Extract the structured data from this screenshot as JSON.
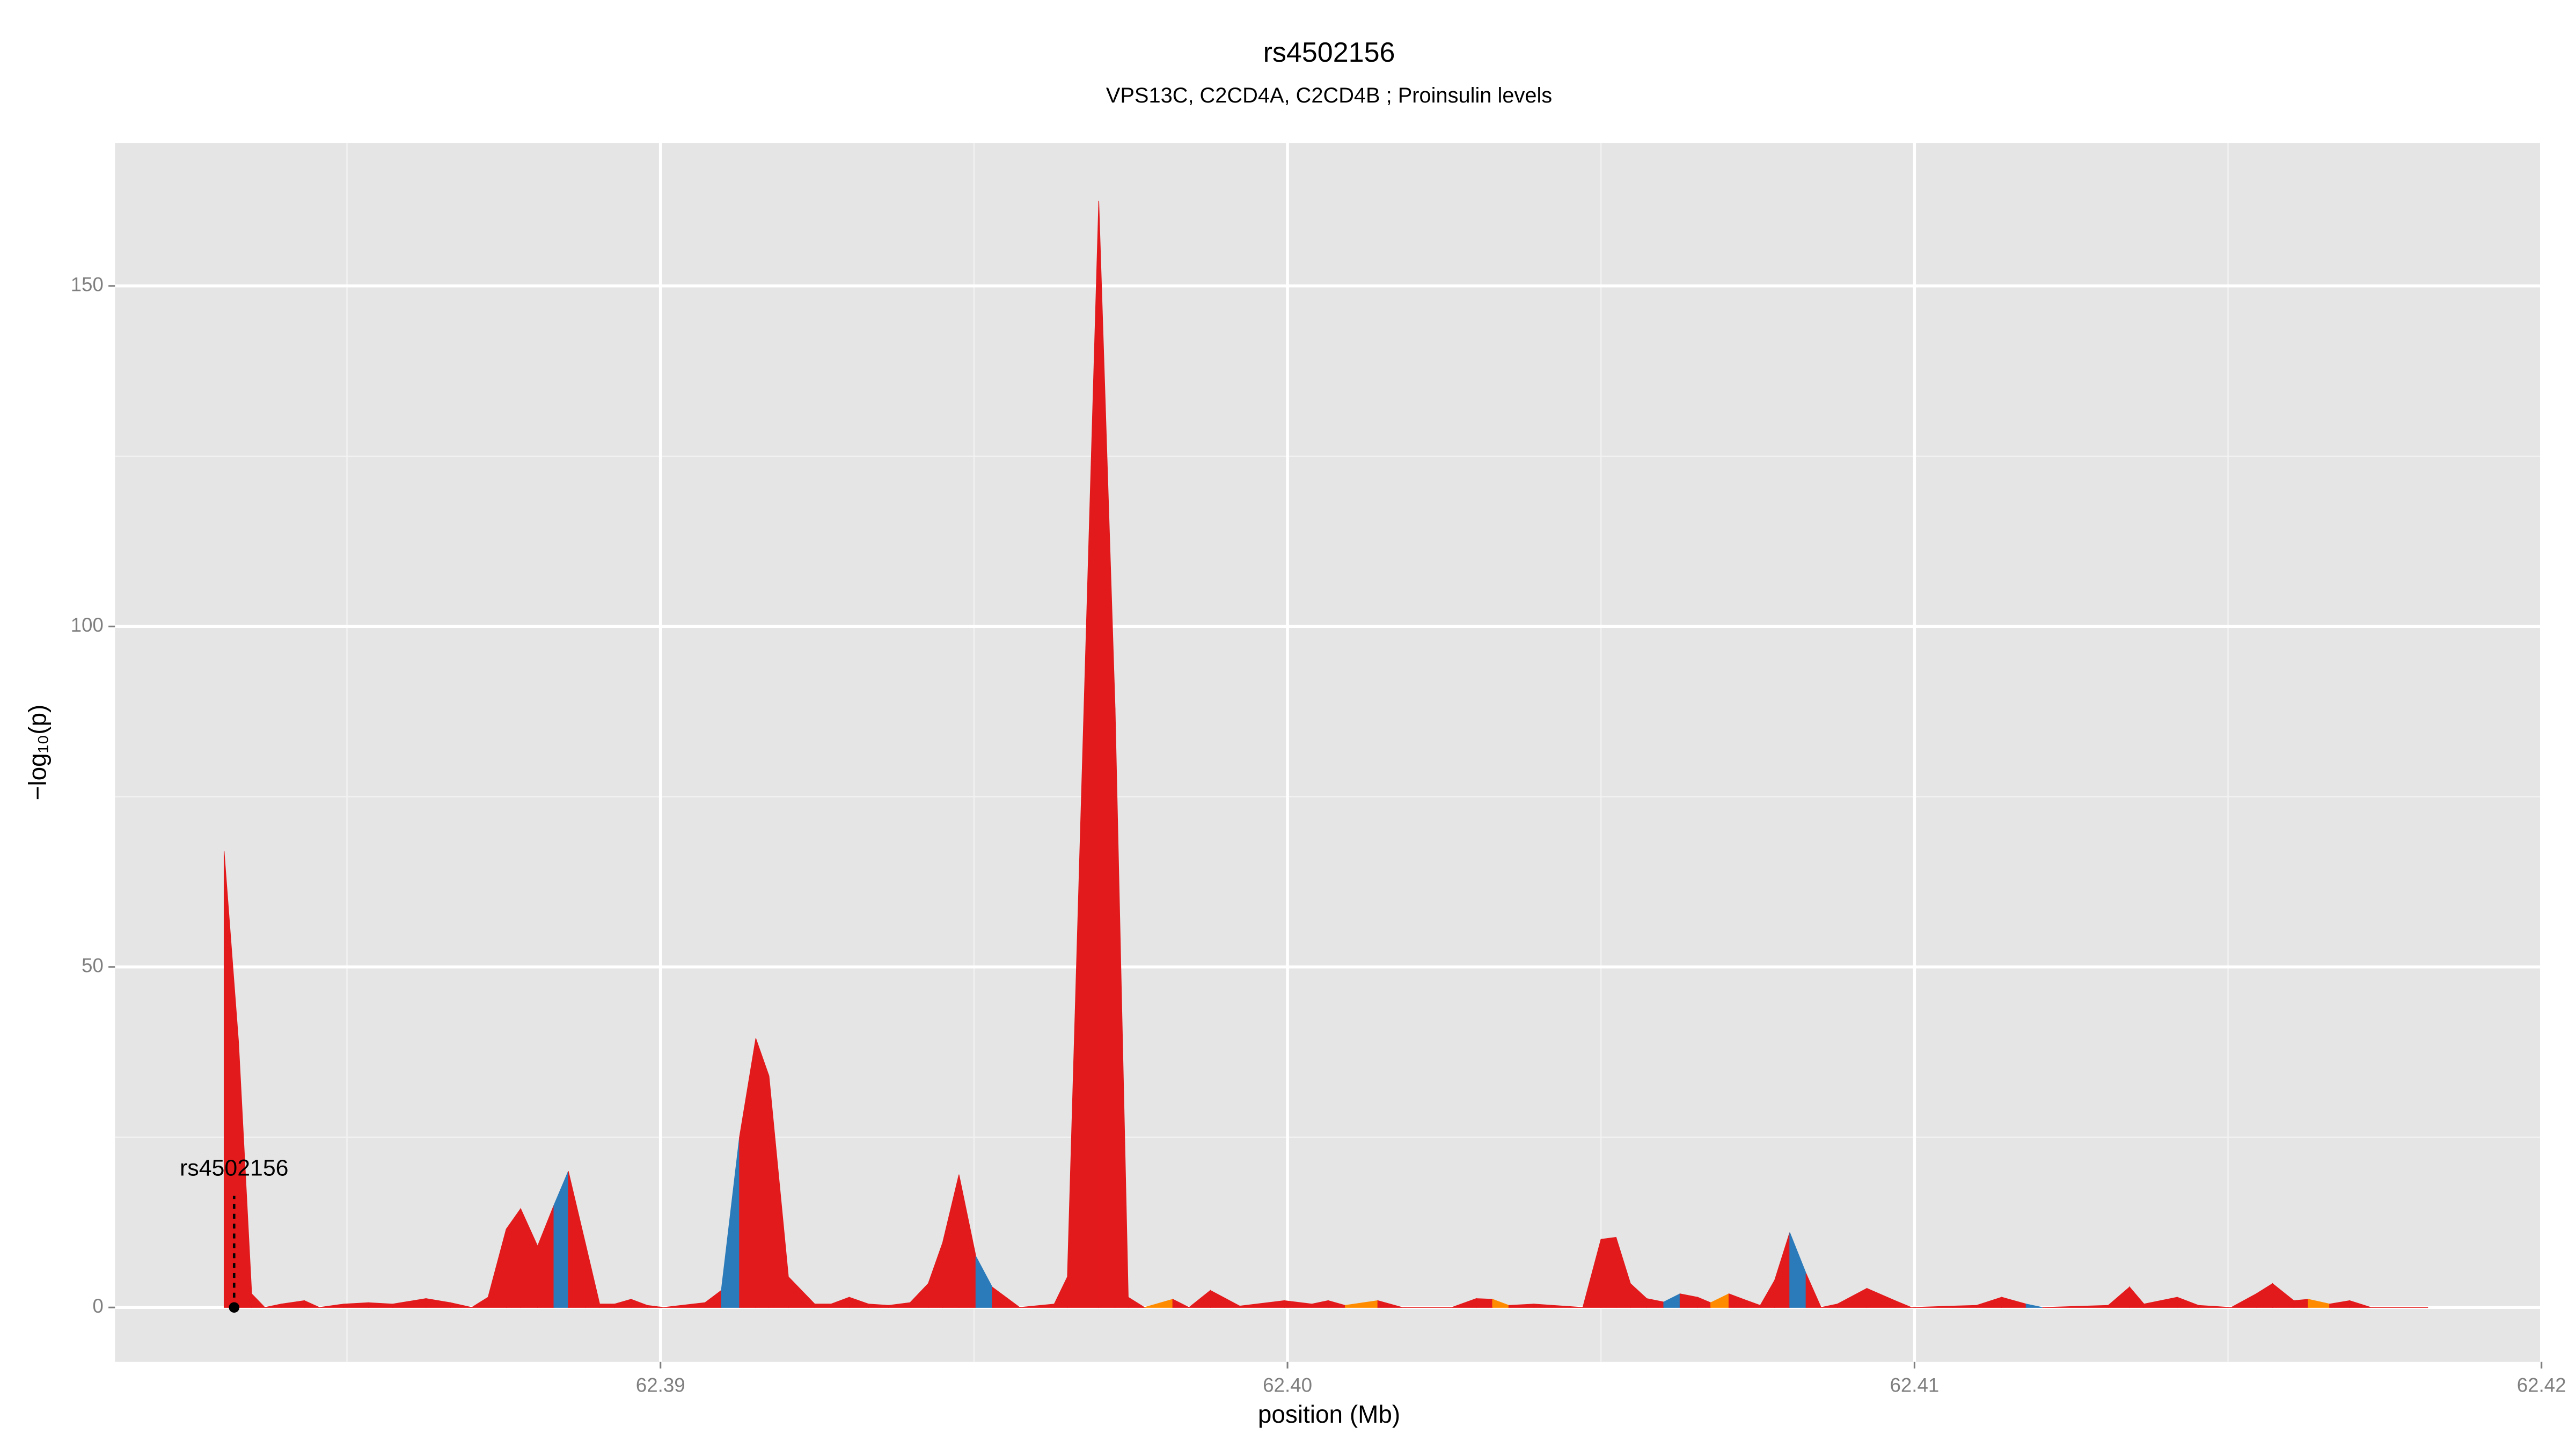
{
  "chart_data": {
    "type": "area",
    "title": "rs4502156",
    "subtitle": "VPS13C, C2CD4A, C2CD4B ; Proinsulin levels",
    "x_label": "position (Mb)",
    "y_label": "−log₁₀(p)",
    "x": [
      62.38304,
      62.38327,
      62.38348,
      62.38369,
      62.38395,
      62.38432,
      62.38456,
      62.38495,
      62.38534,
      62.38573,
      62.38626,
      62.38665,
      62.38699,
      62.38725,
      62.38754,
      62.38777,
      62.38804,
      62.3883,
      62.38853,
      62.3888,
      62.38903,
      62.38927,
      62.38953,
      62.38979,
      62.39005,
      62.39071,
      62.39097,
      62.39126,
      62.39152,
      62.39173,
      62.39204,
      62.39246,
      62.39272,
      62.39301,
      62.39332,
      62.39364,
      62.39398,
      62.39427,
      62.3945,
      62.39476,
      62.39503,
      62.39529,
      62.39573,
      62.39628,
      62.39649,
      62.39699,
      62.39725,
      62.39746,
      62.39772,
      62.39817,
      62.39843,
      62.39877,
      62.39924,
      62.39995,
      62.40039,
      62.40065,
      62.40092,
      62.40144,
      62.40183,
      62.40262,
      62.40301,
      62.40327,
      62.40353,
      62.40393,
      62.40471,
      62.405,
      62.40524,
      62.40547,
      62.40573,
      62.406,
      62.40626,
      62.40654,
      62.40675,
      62.40704,
      62.40733,
      62.40754,
      62.40777,
      62.40801,
      62.40827,
      62.40851,
      62.40877,
      62.40924,
      62.40969,
      62.40995,
      62.4106,
      62.41099,
      62.41139,
      62.41178,
      62.41204,
      62.41309,
      62.41343,
      62.41366,
      62.41419,
      62.41453,
      62.41505,
      62.41545,
      62.41571,
      62.41605,
      62.41628,
      62.41662,
      62.41694,
      62.41728,
      62.41819
    ],
    "values": [
      67,
      39,
      2,
      0,
      0.5,
      1,
      0,
      0.5,
      0.7,
      0.5,
      1.3,
      0.7,
      0,
      1.5,
      11.5,
      14.5,
      9,
      15,
      20,
      9.5,
      0.5,
      0.5,
      1.2,
      0.3,
      0,
      0.7,
      2.5,
      25,
      39.5,
      34,
      4.5,
      0.5,
      0.5,
      1.5,
      0.5,
      0.3,
      0.7,
      3.5,
      9.5,
      19.5,
      7.5,
      3,
      0,
      0.5,
      4.5,
      162.5,
      88,
      1.5,
      0,
      1.2,
      0,
      2.5,
      0.2,
      1,
      0.5,
      1,
      0.3,
      1,
      0,
      0,
      1.3,
      1.2,
      0.3,
      0.5,
      0,
      10,
      10.3,
      3.5,
      1.3,
      0.8,
      2,
      1.5,
      0.7,
      2,
      1,
      0.3,
      4,
      11,
      5,
      0,
      0.5,
      2.8,
      1,
      0,
      0.2,
      0.3,
      1.5,
      0.5,
      0,
      0.3,
      3,
      0.5,
      1.5,
      0.3,
      0,
      2,
      3.5,
      1,
      1.2,
      0.5,
      1,
      0,
      0
    ],
    "colors": [
      "#e31a1c",
      "#e31a1c",
      "#e31a1c",
      "#e31a1c",
      "#e31a1c",
      "#e31a1c",
      "#e31a1c",
      "#e31a1c",
      "#e31a1c",
      "#e31a1c",
      "#e31a1c",
      "#e31a1c",
      "#e31a1c",
      "#e31a1c",
      "#e31a1c",
      "#e31a1c",
      "#e31a1c",
      "#e31a1c",
      "#2b7bba",
      "#e31a1c",
      "#e31a1c",
      "#e31a1c",
      "#e31a1c",
      "#e31a1c",
      "#e31a1c",
      "#e31a1c",
      "#e31a1c",
      "#2b7bba",
      "#e31a1c",
      "#e31a1c",
      "#e31a1c",
      "#e31a1c",
      "#e31a1c",
      "#e31a1c",
      "#e31a1c",
      "#e31a1c",
      "#e31a1c",
      "#e31a1c",
      "#e31a1c",
      "#e31a1c",
      "#e31a1c",
      "#2b7bba",
      "#e31a1c",
      "#e31a1c",
      "#e31a1c",
      "#e31a1c",
      "#e31a1c",
      "#e31a1c",
      "#e31a1c",
      "#ff8c00",
      "#e31a1c",
      "#e31a1c",
      "#e31a1c",
      "#e31a1c",
      "#e31a1c",
      "#e31a1c",
      "#e31a1c",
      "#ff8c00",
      "#e31a1c",
      "#e31a1c",
      "#e31a1c",
      "#e31a1c",
      "#ff8c00",
      "#e31a1c",
      "#e31a1c",
      "#e31a1c",
      "#e31a1c",
      "#e31a1c",
      "#e31a1c",
      "#e31a1c",
      "#2b7bba",
      "#e31a1c",
      "#e31a1c",
      "#ff8c00",
      "#e31a1c",
      "#e31a1c",
      "#e31a1c",
      "#e31a1c",
      "#2b7bba",
      "#e31a1c",
      "#e31a1c",
      "#e31a1c",
      "#e31a1c",
      "#e31a1c",
      "#e31a1c",
      "#e31a1c",
      "#e31a1c",
      "#e31a1c",
      "#2b7bba",
      "#e31a1c",
      "#e31a1c",
      "#e31a1c",
      "#e31a1c",
      "#e31a1c",
      "#e31a1c",
      "#e31a1c",
      "#e31a1c",
      "#e31a1c",
      "#e31a1c",
      "#ff8c00",
      "#e31a1c",
      "#e31a1c",
      "#e31a1c"
    ],
    "annotation": {
      "text": "rs4502156",
      "x": 62.3832,
      "y": 0
    },
    "xlim": [
      62.3813,
      62.42
    ],
    "xticks": [
      62.39,
      {
        "value": 62.4,
        "label": "62.40"
      },
      62.41,
      62.42
    ],
    "ylim": [
      -8,
      171
    ],
    "yticks": [
      0,
      50,
      100,
      150
    ],
    "grid": true
  }
}
